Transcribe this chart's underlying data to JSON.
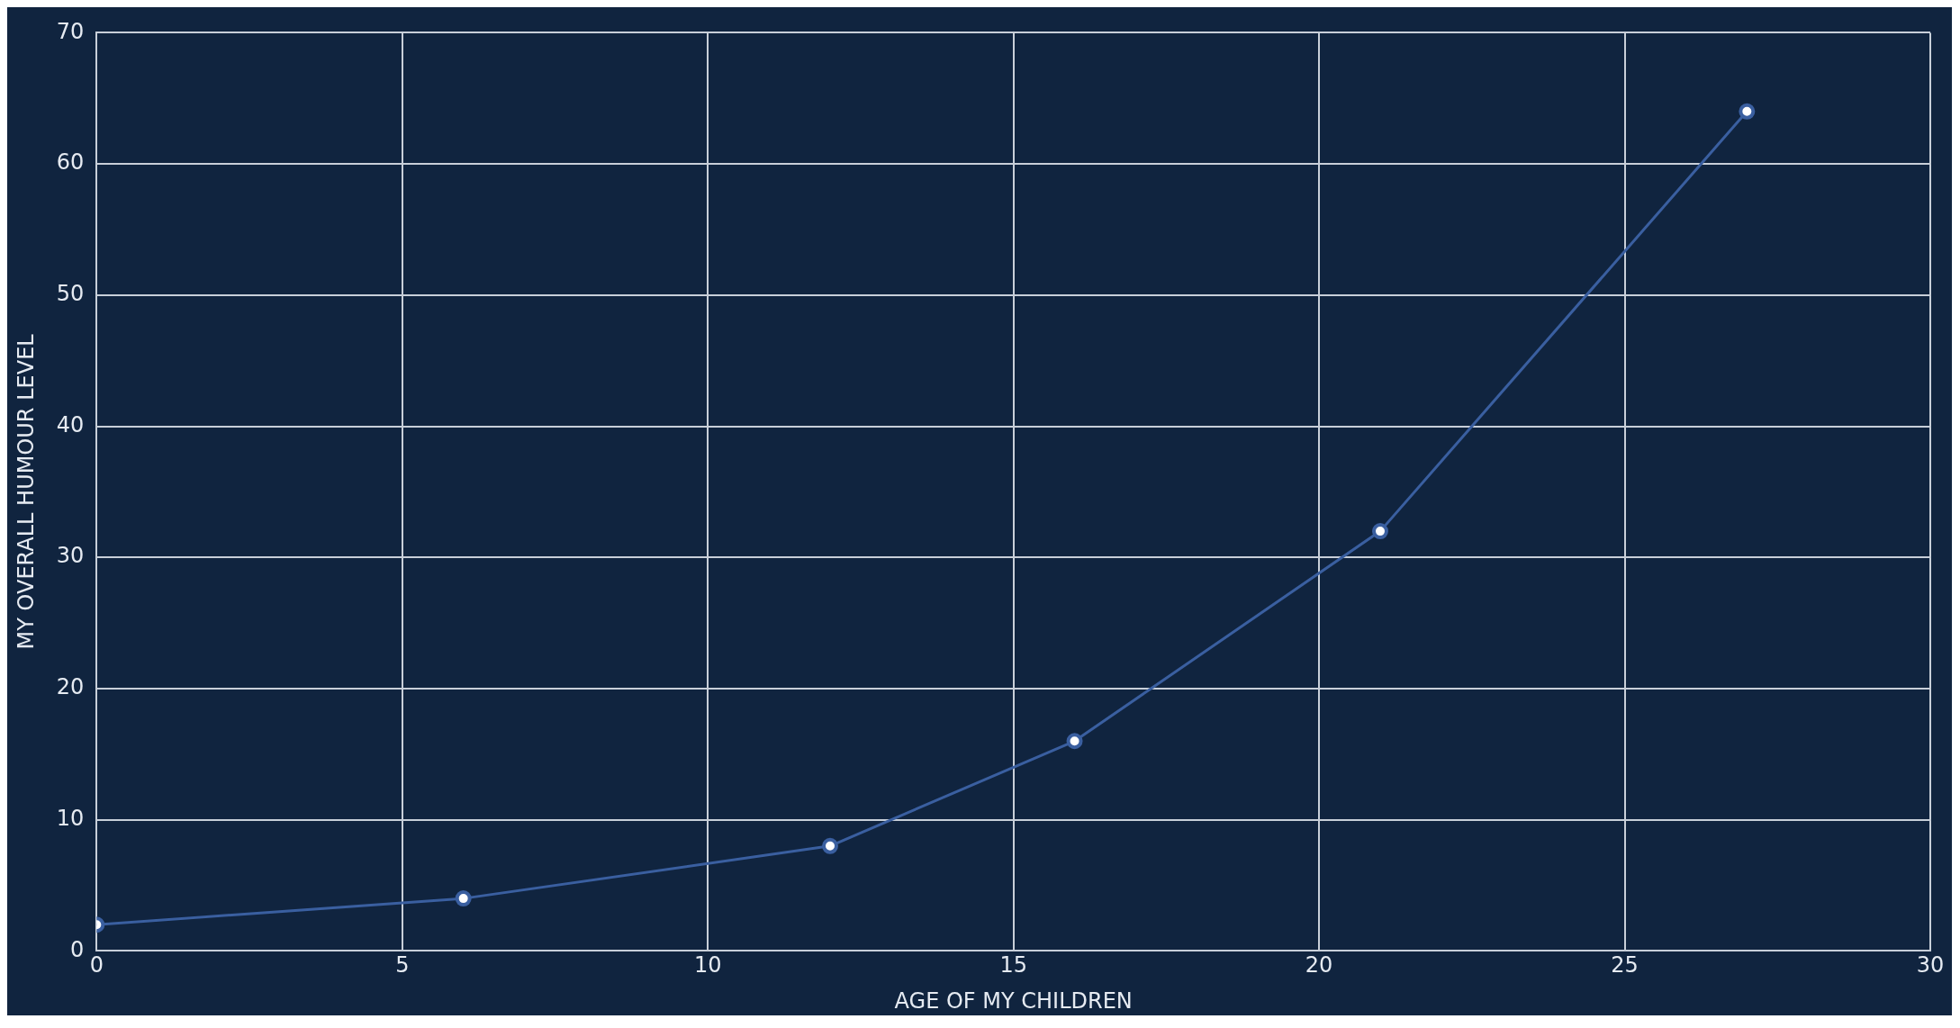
{
  "chart_data": {
    "type": "line",
    "xlabel": "AGE OF MY CHILDREN",
    "ylabel": "MY OVERALL HUMOUR LEVEL",
    "x": [
      0,
      6,
      12,
      16,
      21,
      27
    ],
    "series": [
      {
        "color": "#3a5fa0",
        "values": [
          2,
          4,
          8,
          16,
          32,
          64
        ]
      }
    ],
    "xlim": [
      0,
      30
    ],
    "xticks": [
      0,
      5,
      10,
      15,
      20,
      25,
      30
    ],
    "ylim": [
      0,
      70
    ],
    "yticks": [
      0,
      10,
      20,
      30,
      40,
      50,
      60,
      70
    ],
    "grid": true,
    "marker": "circle",
    "line_style": "solid"
  }
}
